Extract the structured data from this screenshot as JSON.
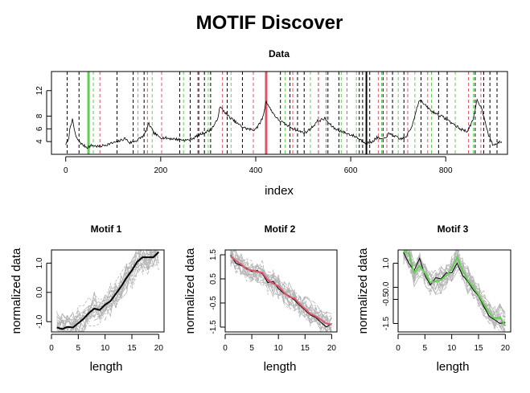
{
  "figure": {
    "title": "MOTIF Discover"
  },
  "chart_data": [
    {
      "type": "line",
      "title": "Data",
      "xlabel": "index",
      "ylabel": "",
      "xlim": [
        -30,
        930
      ],
      "ylim": [
        2,
        15
      ],
      "xticks": [
        0,
        200,
        400,
        600,
        800
      ],
      "yticks": [
        4,
        6,
        8,
        12
      ],
      "series_keypoints": [
        [
          0,
          3.6
        ],
        [
          5,
          4.0
        ],
        [
          10,
          6.5
        ],
        [
          14,
          7.4
        ],
        [
          18,
          6.0
        ],
        [
          22,
          4.6
        ],
        [
          28,
          4.1
        ],
        [
          35,
          3.5
        ],
        [
          45,
          3.1
        ],
        [
          55,
          3.4
        ],
        [
          70,
          3.2
        ],
        [
          90,
          3.6
        ],
        [
          110,
          4.0
        ],
        [
          125,
          4.5
        ],
        [
          135,
          3.8
        ],
        [
          150,
          4.2
        ],
        [
          165,
          5.0
        ],
        [
          175,
          6.8
        ],
        [
          185,
          5.4
        ],
        [
          195,
          4.8
        ],
        [
          205,
          4.6
        ],
        [
          230,
          4.4
        ],
        [
          255,
          4.2
        ],
        [
          270,
          4.6
        ],
        [
          285,
          5.2
        ],
        [
          305,
          5.8
        ],
        [
          318,
          7.2
        ],
        [
          325,
          9.4
        ],
        [
          333,
          8.8
        ],
        [
          342,
          8.0
        ],
        [
          352,
          7.4
        ],
        [
          362,
          6.8
        ],
        [
          372,
          6.3
        ],
        [
          382,
          6.0
        ],
        [
          395,
          5.8
        ],
        [
          405,
          6.4
        ],
        [
          415,
          7.8
        ],
        [
          422,
          10.4
        ],
        [
          430,
          9.2
        ],
        [
          445,
          7.6
        ],
        [
          460,
          6.8
        ],
        [
          475,
          6.2
        ],
        [
          492,
          5.6
        ],
        [
          505,
          5.4
        ],
        [
          518,
          6.2
        ],
        [
          530,
          7.2
        ],
        [
          545,
          7.6
        ],
        [
          555,
          6.8
        ],
        [
          565,
          6.1
        ],
        [
          580,
          5.6
        ],
        [
          595,
          5.2
        ],
        [
          610,
          4.8
        ],
        [
          622,
          4.2
        ],
        [
          632,
          3.8
        ],
        [
          642,
          3.8
        ],
        [
          655,
          4.6
        ],
        [
          668,
          4.3
        ],
        [
          680,
          5.2
        ],
        [
          692,
          4.9
        ],
        [
          702,
          4.4
        ],
        [
          715,
          4.6
        ],
        [
          728,
          6.2
        ],
        [
          738,
          9.0
        ],
        [
          745,
          10.6
        ],
        [
          755,
          9.8
        ],
        [
          770,
          8.8
        ],
        [
          785,
          8.2
        ],
        [
          800,
          7.6
        ],
        [
          815,
          6.8
        ],
        [
          830,
          6.0
        ],
        [
          845,
          5.6
        ],
        [
          858,
          7.4
        ],
        [
          866,
          10.6
        ],
        [
          874,
          9.5
        ],
        [
          882,
          7.6
        ],
        [
          890,
          5.0
        ],
        [
          900,
          3.4
        ],
        [
          910,
          3.8
        ],
        [
          918,
          4.0
        ]
      ],
      "annotations": {
        "green_thick": [
          48
        ],
        "red_thick": [
          422
        ],
        "black_thick": [
          633
        ],
        "black_dashed": [
          3,
          28,
          108,
          142,
          165,
          240,
          262,
          280,
          292,
          305,
          340,
          372,
          452,
          472,
          488,
          502,
          532,
          552,
          575,
          618,
          625,
          640,
          668,
          688,
          712,
          748,
          785,
          803,
          862,
          880,
          893,
          908
        ],
        "green_dashed": [
          58,
          152,
          182,
          248,
          300,
          348,
          462,
          515,
          580,
          612,
          665,
          700,
          735,
          770,
          820,
          858
        ],
        "red_dashed": [
          72,
          172,
          202,
          278,
          330,
          395,
          478,
          532,
          548,
          592,
          658,
          676,
          720,
          762,
          848,
          874
        ]
      }
    },
    {
      "type": "line",
      "title": "Motif 1",
      "xlabel": "length",
      "ylabel": "normalized data",
      "xlim": [
        0,
        21
      ],
      "ylim": [
        -1.35,
        1.45
      ],
      "xticks": [
        0,
        5,
        10,
        15,
        20
      ],
      "yticks": [
        -1.0,
        0.0,
        1.0
      ],
      "ytick_labels": [
        "-1.0",
        "0.0",
        "1.0"
      ],
      "motif_color": "#000000",
      "motif": [
        -1.2,
        -1.25,
        -1.18,
        -1.2,
        -1.05,
        -0.9,
        -0.7,
        -0.55,
        -0.6,
        -0.42,
        -0.3,
        -0.05,
        0.2,
        0.5,
        0.75,
        1.05,
        1.2,
        1.2,
        1.2,
        1.38
      ],
      "n_gray": 24
    },
    {
      "type": "line",
      "title": "Motif 2",
      "xlabel": "length",
      "ylabel": "normalized data",
      "xlim": [
        0,
        21
      ],
      "ylim": [
        -1.7,
        1.7
      ],
      "xticks": [
        0,
        5,
        10,
        15,
        20
      ],
      "yticks": [
        -1.5,
        -0.5,
        0.5,
        1.5
      ],
      "ytick_labels": [
        "-1.5",
        "-0.5",
        "0.5",
        "1.5"
      ],
      "motif_color": "#df536b",
      "motif": [
        1.45,
        1.25,
        1.1,
        0.9,
        0.85,
        0.8,
        0.75,
        0.45,
        0.3,
        0.2,
        -0.05,
        -0.25,
        -0.3,
        -0.55,
        -0.75,
        -0.95,
        -1.05,
        -1.2,
        -1.35,
        -1.4
      ],
      "overlay": [
        1.5,
        1.15,
        1.05,
        0.95,
        0.8,
        0.85,
        0.7,
        0.35,
        0.4,
        0.1,
        -0.1,
        -0.2,
        -0.38,
        -0.6,
        -0.8,
        -1.0,
        -1.1,
        -1.3,
        -1.5,
        -1.35
      ],
      "n_gray": 24
    },
    {
      "type": "line",
      "title": "Motif 3",
      "xlabel": "length",
      "ylabel": "normalized data",
      "xlim": [
        0,
        21
      ],
      "ylim": [
        -1.85,
        1.55
      ],
      "xticks": [
        0,
        5,
        10,
        15,
        20
      ],
      "yticks": [
        -1.5,
        -0.5,
        0.0,
        1.0
      ],
      "ytick_labels": [
        "-1.5",
        "-0.5",
        "0.0",
        "1.0"
      ],
      "motif_color": "#61d04f",
      "motif": [
        1.5,
        1.4,
        0.6,
        0.9,
        0.6,
        0.2,
        0.25,
        0.3,
        0.5,
        0.75,
        1.25,
        0.7,
        0.3,
        0.0,
        -0.3,
        -0.7,
        -1.05,
        -1.3,
        -1.25,
        -1.6
      ],
      "overlay": [
        1.45,
        1.0,
        0.7,
        1.2,
        0.5,
        0.1,
        0.4,
        0.35,
        0.6,
        0.6,
        1.0,
        0.5,
        0.25,
        -0.1,
        -0.35,
        -0.8,
        -1.2,
        -1.35,
        -1.5,
        -1.45
      ],
      "n_gray": 24
    }
  ]
}
